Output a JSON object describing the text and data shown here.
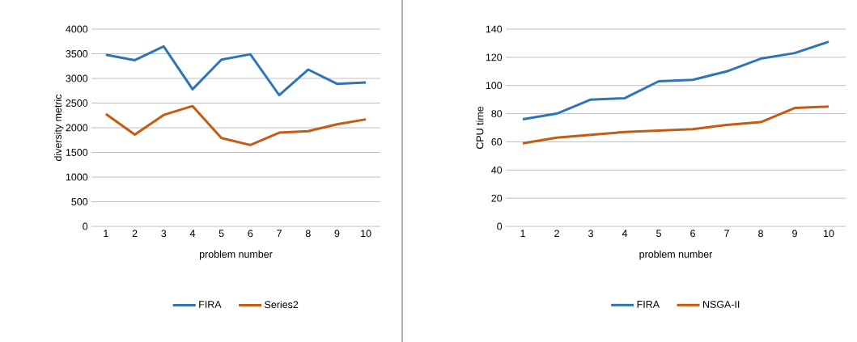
{
  "chart_data": [
    {
      "type": "line",
      "categories": [
        "1",
        "2",
        "3",
        "4",
        "5",
        "6",
        "7",
        "8",
        "9",
        "10"
      ],
      "xlabel": "problem number",
      "ylabel": "diversity metric",
      "ylim": [
        0,
        4000
      ],
      "yticks": [
        0,
        500,
        1000,
        1500,
        2000,
        2500,
        3000,
        3500,
        4000
      ],
      "grid": "y",
      "legend": "bottom",
      "series": [
        {
          "name": "FIRA",
          "color": "#2e75b6",
          "values": [
            3480,
            3370,
            3650,
            2780,
            3380,
            3490,
            2660,
            3180,
            2890,
            2920
          ]
        },
        {
          "name": "Series2",
          "color": "#c55a11",
          "values": [
            2280,
            1860,
            2260,
            2440,
            1790,
            1650,
            1900,
            1930,
            2070,
            2170
          ]
        }
      ]
    },
    {
      "type": "line",
      "categories": [
        "1",
        "2",
        "3",
        "4",
        "5",
        "6",
        "7",
        "8",
        "9",
        "10"
      ],
      "xlabel": "problem number",
      "ylabel": "CPU time",
      "ylim": [
        0,
        140
      ],
      "yticks": [
        0,
        20,
        40,
        60,
        80,
        100,
        120,
        140
      ],
      "grid": "y",
      "legend": "bottom",
      "series": [
        {
          "name": "FIRA",
          "color": "#2e75b6",
          "values": [
            76,
            80,
            90,
            91,
            103,
            104,
            110,
            119,
            123,
            131
          ]
        },
        {
          "name": "NSGA-II",
          "color": "#c55a11",
          "values": [
            59,
            63,
            65,
            67,
            68,
            69,
            72,
            74,
            84,
            85
          ]
        }
      ]
    }
  ]
}
